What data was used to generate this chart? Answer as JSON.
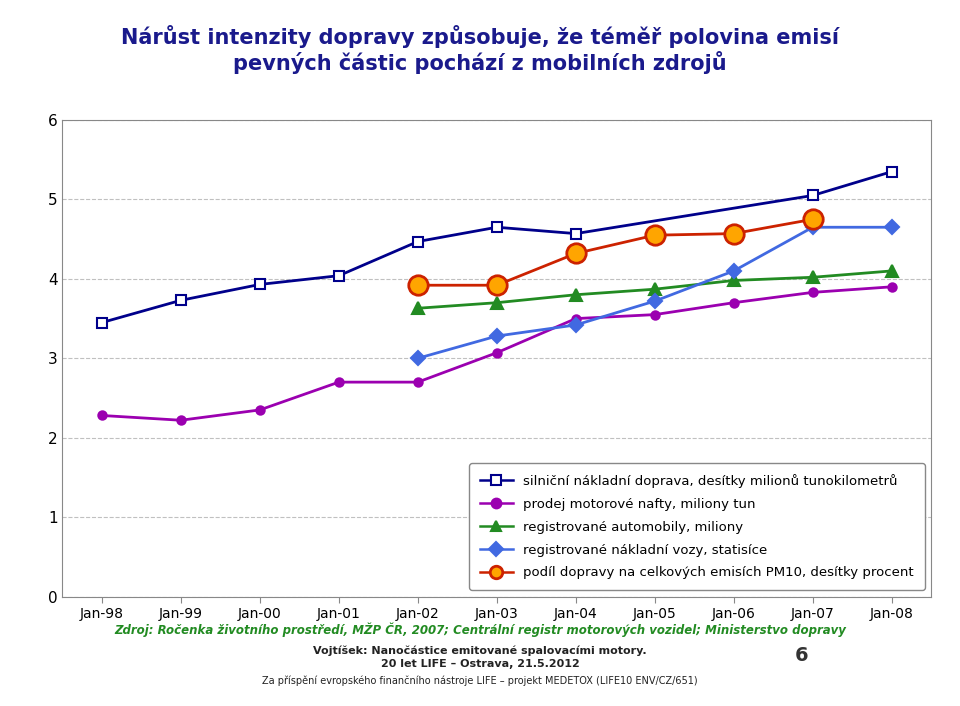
{
  "title_line1": "Nárůst intenzity dopravy způsobuje, že téměř polovina emisí",
  "title_line2": "pevných částic pochází z mobilních zdrojů",
  "title_color": "#1a1a8c",
  "x_labels": [
    "Jan-98",
    "Jan-99",
    "Jan-00",
    "Jan-01",
    "Jan-02",
    "Jan-03",
    "Jan-04",
    "Jan-05",
    "Jan-06",
    "Jan-07",
    "Jan-08"
  ],
  "ylim": [
    0,
    6
  ],
  "yticks": [
    0,
    1,
    2,
    3,
    4,
    5,
    6
  ],
  "series": {
    "silnicni": {
      "label": "silniční nákladní doprava, desítky milionů tunokilometrů",
      "color": "#00008B",
      "marker": "s",
      "marker_facecolor": "white",
      "marker_edgecolor": "#00008B",
      "linewidth": 2.0,
      "markersize": 7,
      "values": [
        3.45,
        3.73,
        3.93,
        4.04,
        4.47,
        4.65,
        4.57,
        null,
        null,
        5.05,
        5.35
      ]
    },
    "nafta": {
      "label": "prodej motorové nafty, miliony tun",
      "color": "#9B00B0",
      "marker": "o",
      "marker_facecolor": "#9B00B0",
      "marker_edgecolor": "#9B00B0",
      "linewidth": 2.0,
      "markersize": 6,
      "values": [
        2.28,
        2.22,
        2.35,
        2.7,
        2.7,
        3.07,
        3.5,
        3.55,
        3.7,
        3.83,
        3.9
      ]
    },
    "automobily": {
      "label": "registrované automobily, miliony",
      "color": "#228B22",
      "marker": "^",
      "marker_facecolor": "#228B22",
      "marker_edgecolor": "#228B22",
      "linewidth": 2.0,
      "markersize": 8,
      "values": [
        null,
        null,
        null,
        null,
        3.63,
        3.7,
        3.8,
        3.87,
        3.98,
        4.02,
        4.1
      ]
    },
    "nakladni": {
      "label": "registrované nákladní vozy, statisíce",
      "color": "#4169E1",
      "marker": "D",
      "marker_facecolor": "#4169E1",
      "marker_edgecolor": "#4169E1",
      "linewidth": 2.0,
      "markersize": 7,
      "values": [
        null,
        null,
        null,
        null,
        3.0,
        3.28,
        3.42,
        3.72,
        4.1,
        4.65,
        4.65
      ]
    },
    "podil": {
      "label": "podíl dopravy na celkových emisích PM10, desítky procent",
      "color": "#CC2200",
      "marker": "o",
      "marker_facecolor": "#FFA500",
      "marker_edgecolor": "#CC2200",
      "linewidth": 2.0,
      "markersize": 14,
      "values": [
        null,
        null,
        null,
        null,
        3.92,
        3.92,
        4.32,
        4.55,
        4.57,
        4.75,
        null
      ]
    }
  },
  "source_text": "Zdroj: Ročenka životního prostředí, MŽP ČR, 2007; Centrální registr motorových vozidel; Ministerstvo dopravy",
  "source_color": "#228B22",
  "footnote1": "Vojtíšek: Nanočástice emitované spalovacími motory.",
  "footnote2": "20 let LIFE – Ostrava, 21.5.2012",
  "footnote3": "Za příspění evropského finančního nástroje LIFE – projekt MEDETOX (LIFE10 ENV/CZ/651)",
  "page_number": "6",
  "background_color": "#ffffff",
  "plot_background": "#ffffff",
  "grid_color": "#c0c0c0",
  "legend_fontsize": 9.5,
  "axis_label_fontsize": 11
}
